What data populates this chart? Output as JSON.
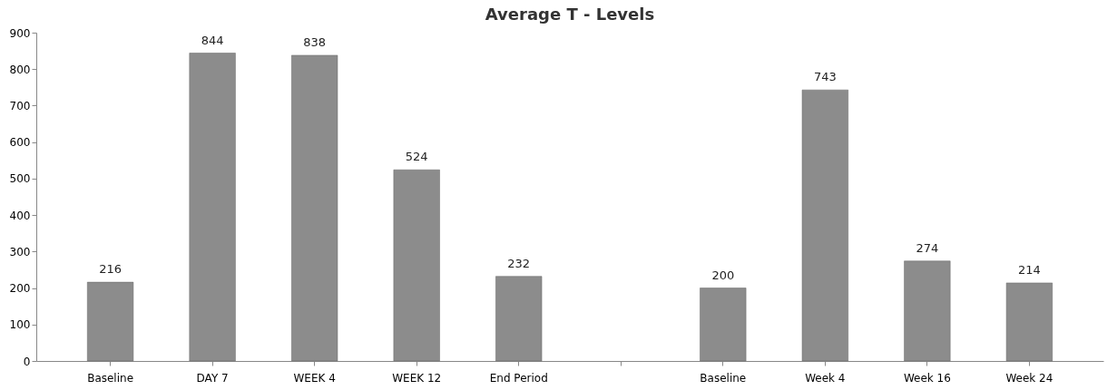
{
  "chart_data": {
    "type": "bar",
    "title": "Average T - Levels",
    "categories": [
      "Baseline",
      "DAY 7",
      "WEEK 4",
      "WEEK 12",
      "End Period",
      null,
      "Baseline",
      "Week 4",
      "Week 16",
      "Week 24"
    ],
    "values": [
      216,
      844,
      838,
      524,
      232,
      null,
      200,
      743,
      274,
      214
    ],
    "color": "#8c8c8c",
    "ylim": [
      0,
      900
    ],
    "yticks": [
      0,
      100,
      200,
      300,
      400,
      500,
      600,
      700,
      800,
      900
    ],
    "grid": false,
    "data_labels": true
  }
}
